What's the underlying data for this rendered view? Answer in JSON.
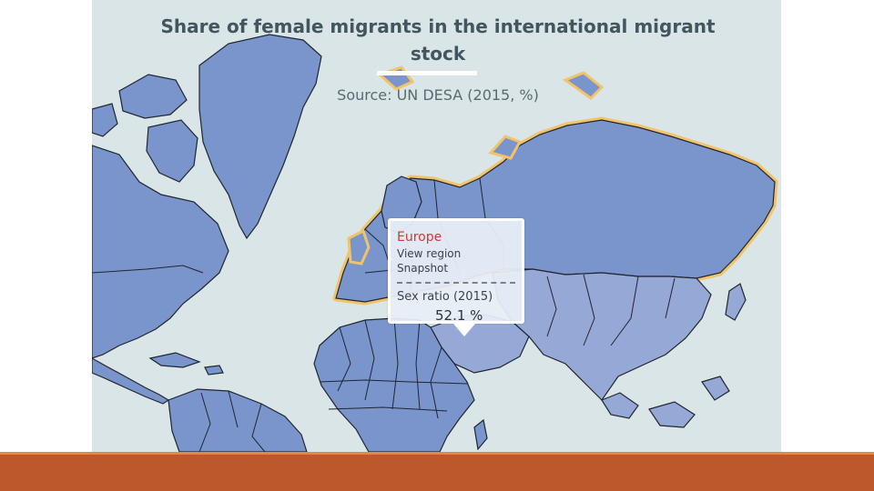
{
  "map": {
    "title": "Share of female migrants in the international migrant stock",
    "subtitle": "Source: UN DESA (2015, %)",
    "colors": {
      "ocean": "#d9e5e6",
      "land": "#7a94cc",
      "land_light": "#96a9d6",
      "highlight_outline": "#f2c46a",
      "border": "#1f2630"
    },
    "tooltip": {
      "region": "Europe",
      "link": "View region Snapshot",
      "metric_label": "Sex ratio (2015)",
      "metric_value": "52.1 %"
    }
  },
  "footer": {
    "band_color": "#bd582c",
    "line_color": "#e08a3e"
  }
}
